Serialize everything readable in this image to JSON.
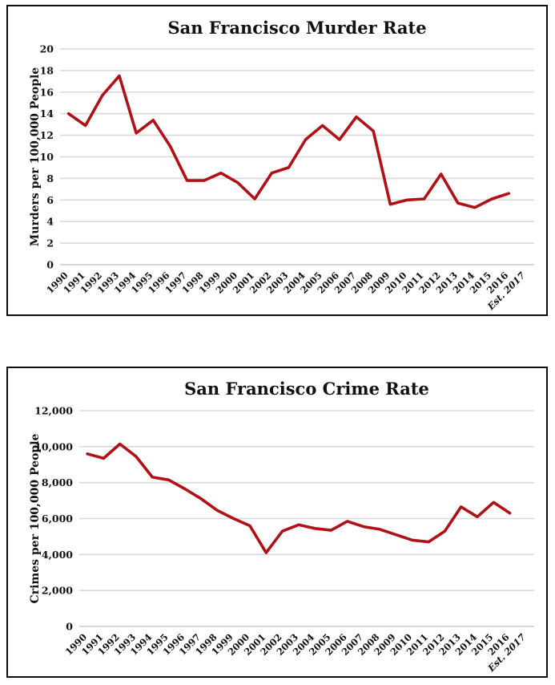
{
  "page": {
    "background": "#ffffff"
  },
  "colors": {
    "line": "#B01116",
    "gridline": "#D9D9D9",
    "baseline": "#C8C8C8",
    "text": "#111111",
    "border": "#0d0d0d"
  },
  "chart_data": [
    {
      "type": "line",
      "title": "San Francisco Murder Rate",
      "xlabel": "",
      "ylabel": "Murders per 100,000 People",
      "categories": [
        "1990",
        "1991",
        "1992",
        "1993",
        "1994",
        "1995",
        "1996",
        "1997",
        "1998",
        "1999",
        "2000",
        "2001",
        "2002",
        "2003",
        "2004",
        "2005",
        "2006",
        "2007",
        "2008",
        "2009",
        "2010",
        "2011",
        "2012",
        "2013",
        "2014",
        "2015",
        "2016",
        "Est. 2017"
      ],
      "values": [
        14.0,
        12.9,
        15.7,
        17.5,
        12.2,
        13.4,
        11.0,
        7.8,
        7.8,
        8.5,
        7.6,
        6.1,
        8.5,
        9.0,
        11.6,
        12.9,
        11.6,
        13.7,
        12.4,
        5.6,
        6.0,
        6.1,
        8.4,
        5.7,
        5.3,
        6.1,
        6.6
      ],
      "values_note": "Line is plotted for 1990 through 2016; no point is drawn for the Est. 2017 category",
      "ylim": [
        0,
        20
      ],
      "ytick_step": 2,
      "ytick_labels": [
        "0",
        "2",
        "4",
        "6",
        "8",
        "10",
        "12",
        "14",
        "16",
        "18",
        "20"
      ],
      "grid": true,
      "legend": "none",
      "line_color": "#B01116"
    },
    {
      "type": "line",
      "title": "San Francisco Crime Rate",
      "xlabel": "",
      "ylabel": "Crimes per 100,000 People",
      "categories": [
        "1990",
        "1991",
        "1992",
        "1993",
        "1994",
        "1995",
        "1996",
        "1997",
        "1998",
        "1999",
        "2000",
        "2001",
        "2002",
        "2003",
        "2004",
        "2005",
        "2006",
        "2007",
        "2008",
        "2009",
        "2010",
        "2011",
        "2012",
        "2013",
        "2014",
        "2015",
        "2016",
        "Est. 2017"
      ],
      "values": [
        9600,
        9350,
        10150,
        9450,
        8300,
        8150,
        7650,
        7100,
        6450,
        6000,
        5600,
        4100,
        5300,
        5650,
        5450,
        5350,
        5850,
        5550,
        5400,
        5100,
        4800,
        4700,
        5300,
        6650,
        6100,
        6900,
        6300
      ],
      "values_note": "Line is plotted for 1990 through 2016; no point is drawn for the Est. 2017 category",
      "ylim": [
        0,
        12000
      ],
      "ytick_step": 2000,
      "ytick_labels": [
        "0",
        "2,000",
        "4,000",
        "6,000",
        "8,000",
        "10,000",
        "12,000"
      ],
      "grid": true,
      "legend": "none",
      "line_color": "#B01116"
    }
  ]
}
